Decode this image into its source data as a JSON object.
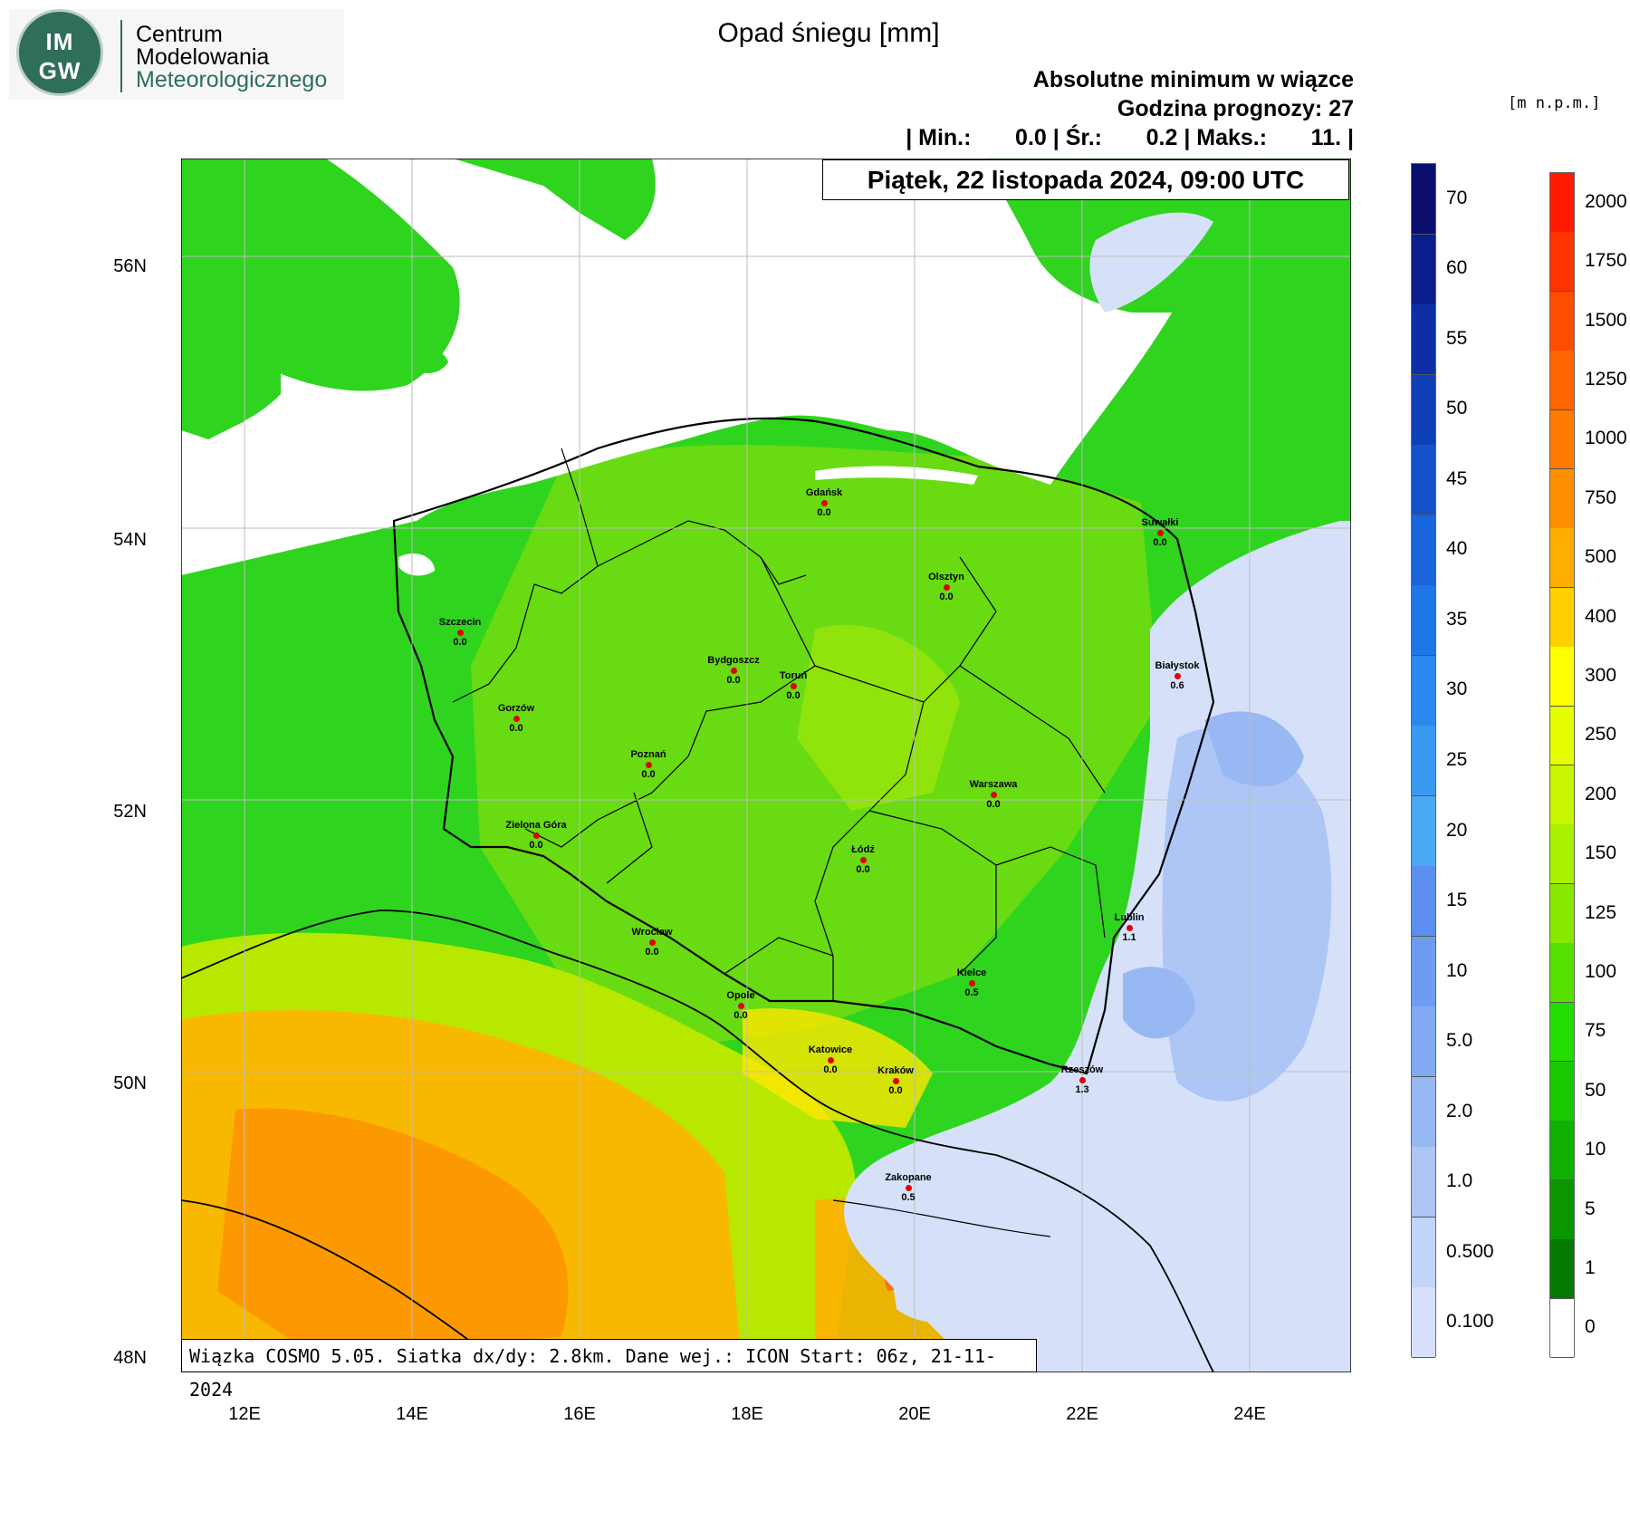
{
  "header": {
    "org_line1": "Centrum",
    "org_line2": "Modelowania",
    "org_line3": "Meteorologicznego",
    "logo_top": "IM",
    "logo_bottom": "GW",
    "title": "Opad śniegu [mm]",
    "subtitle1": "Absolutne minimum w wiązce",
    "subtitle2": "Godzina prognozy: 27",
    "stats_line": "| Min.:       0.0 | Śr.:       0.2 | Maks.:       11. |",
    "date": "Piątek, 22 listopada 2024, 09:00 UTC",
    "elev_unit": "[m  n.p.m.]"
  },
  "footer": {
    "info": "Wiązka COSMO 5.05. Siatka dx/dy: 2.8km. Dane wej.: ICON Start: 06z, 21-11-2024"
  },
  "axes": {
    "lat_ticks": [
      "56N",
      "54N",
      "52N",
      "50N",
      "48N"
    ],
    "lon_ticks": [
      "12E",
      "14E",
      "16E",
      "18E",
      "20E",
      "22E",
      "24E"
    ]
  },
  "cities": [
    {
      "name": "Gdańsk",
      "value": "0.0"
    },
    {
      "name": "Suwałki",
      "value": "0.0"
    },
    {
      "name": "Olsztyn",
      "value": "0.0"
    },
    {
      "name": "Szczecin",
      "value": "0.0"
    },
    {
      "name": "Bydgoszcz",
      "value": "0.0"
    },
    {
      "name": "Toruń",
      "value": "0.0"
    },
    {
      "name": "Białystok",
      "value": "0.6"
    },
    {
      "name": "Gorzów",
      "value": "0.0"
    },
    {
      "name": "Poznań",
      "value": "0.0"
    },
    {
      "name": "Warszawa",
      "value": "0.0"
    },
    {
      "name": "Zielona Góra",
      "value": "0.0"
    },
    {
      "name": "Łódź",
      "value": "0.0"
    },
    {
      "name": "Lublin",
      "value": "1.1"
    },
    {
      "name": "Wrocław",
      "value": "0.0"
    },
    {
      "name": "Kielce",
      "value": "0.5"
    },
    {
      "name": "Opole",
      "value": "0.0"
    },
    {
      "name": "Katowice",
      "value": "0.0"
    },
    {
      "name": "Kraków",
      "value": "0.0"
    },
    {
      "name": "Rzeszów",
      "value": "1.3"
    },
    {
      "name": "Zakopane",
      "value": "0.5"
    }
  ],
  "snow_scale": {
    "labels": [
      "70",
      "60",
      "55",
      "50",
      "45",
      "40",
      "35",
      "30",
      "25",
      "20",
      "15",
      "10",
      "5.0",
      "2.0",
      "1.0",
      "0.500",
      "0.100"
    ],
    "colors": [
      "#0a0f6e",
      "#0b1f8c",
      "#0d2fa3",
      "#1040b8",
      "#1452cc",
      "#1a64dc",
      "#2076e6",
      "#2a88ee",
      "#3a9af2",
      "#4aa8f5",
      "#5c8ff0",
      "#6e9cf0",
      "#82aaf2",
      "#98b8f3",
      "#adc6f5",
      "#c2d4f7",
      "#d6e1f9"
    ]
  },
  "elev_scale": {
    "labels": [
      "2000",
      "1750",
      "1500",
      "1250",
      "1000",
      "750",
      "500",
      "400",
      "300",
      "250",
      "200",
      "150",
      "125",
      "100",
      "75",
      "50",
      "10",
      "5",
      "1",
      "0"
    ],
    "colors": [
      "#ff1a00",
      "#ff3300",
      "#ff4d00",
      "#ff6600",
      "#ff7a00",
      "#ff8f00",
      "#ffad00",
      "#ffd000",
      "#ffff00",
      "#e5ff00",
      "#c8f500",
      "#a8ef00",
      "#88e800",
      "#55e000",
      "#22dd00",
      "#1ac800",
      "#10b000",
      "#099600",
      "#037a00",
      "#ffffff"
    ]
  }
}
